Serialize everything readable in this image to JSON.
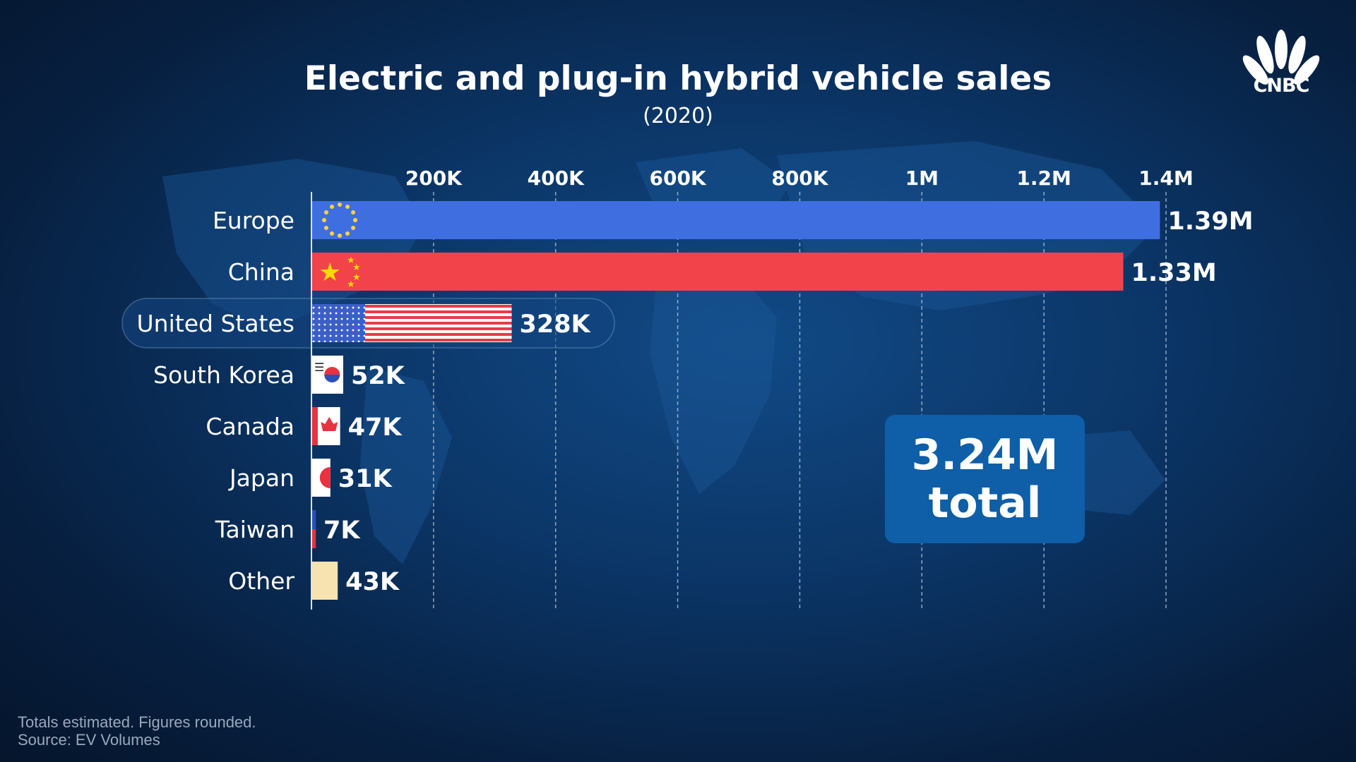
{
  "chart_data": {
    "type": "bar",
    "orientation": "horizontal",
    "title": "Electric and plug-in hybrid vehicle sales",
    "subtitle": "(2020)",
    "categories": [
      "Europe",
      "China",
      "United States",
      "South Korea",
      "Canada",
      "Japan",
      "Taiwan",
      "Other"
    ],
    "values": [
      1390000,
      1330000,
      328000,
      52000,
      47000,
      31000,
      7000,
      43000
    ],
    "value_labels": [
      "1.39M",
      "1.33M",
      "328K",
      "52K",
      "47K",
      "31K",
      "7K",
      "43K"
    ],
    "bar_styles": [
      "eu-flag",
      "china-flag",
      "us-flag",
      "korea-flag",
      "canada-flag",
      "japan-flag",
      "taiwan-flag",
      "plain"
    ],
    "bar_colors": [
      "#3f6ee0",
      "#f2434a",
      "#ffffff",
      "#ffffff",
      "#ffffff",
      "#ffffff",
      "#ffffff",
      "#f6e3b0"
    ],
    "highlighted_category": "United States",
    "x_ticks": [
      200000,
      400000,
      600000,
      800000,
      1000000,
      1200000,
      1400000
    ],
    "x_tick_labels": [
      "200K",
      "400K",
      "600K",
      "800K",
      "1M",
      "1.2M",
      "1.4M"
    ],
    "xlim": [
      0,
      1400000
    ],
    "grid": "vertical-dashed",
    "legend": "none"
  },
  "callout": {
    "value": "3.24M",
    "label": "total"
  },
  "brand": {
    "name": "CNBC",
    "logo": "cnbc-peacock-logo"
  },
  "footnotes": [
    "Totals estimated. Figures rounded.",
    "Source: EV Volumes"
  ],
  "colors": {
    "background": "#0b3566",
    "callout_bg": "#0e5ea8",
    "europe": "#3f6ee0",
    "china": "#f2434a",
    "other": "#f6e3b0",
    "footnote": "#9aa9bc"
  }
}
